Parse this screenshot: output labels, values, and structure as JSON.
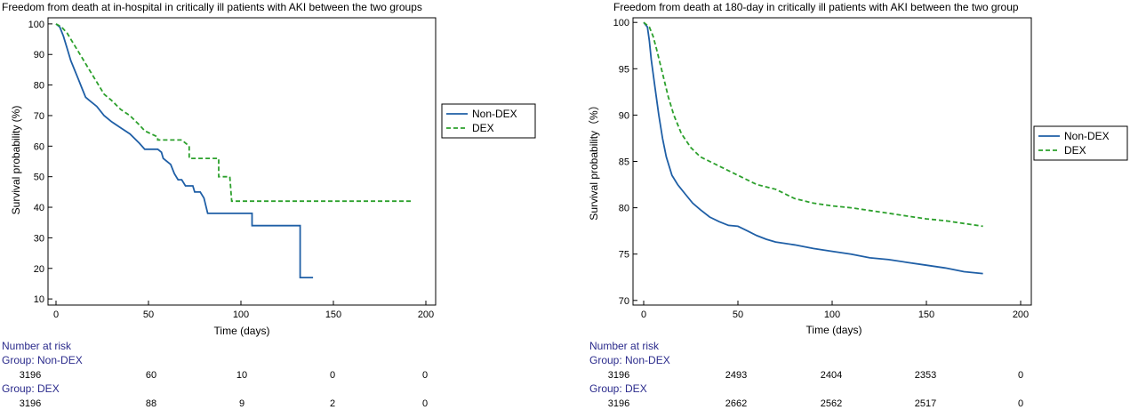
{
  "chart_data": [
    {
      "type": "line",
      "title": "Freedom from death at in-hospital in critically ill patients with AKI between the two groups",
      "xlabel": "Time (days)",
      "ylabel": "Survival probability (%)",
      "xlim": [
        0,
        200
      ],
      "ylim": [
        8,
        102
      ],
      "xticks": [
        0,
        50,
        100,
        150,
        200
      ],
      "yticks": [
        10,
        20,
        30,
        40,
        50,
        60,
        70,
        80,
        90,
        100
      ],
      "grid": false,
      "legend_position": "right",
      "series": [
        {
          "name": "Non-DEX",
          "color": "#1f5fa6",
          "style": "solid",
          "points": [
            [
              0,
              100
            ],
            [
              2,
              99
            ],
            [
              4,
              96
            ],
            [
              6,
              92
            ],
            [
              8,
              88
            ],
            [
              10,
              85
            ],
            [
              12,
              82
            ],
            [
              14,
              79
            ],
            [
              16,
              76
            ],
            [
              18,
              75
            ],
            [
              22,
              73
            ],
            [
              26,
              70
            ],
            [
              30,
              68
            ],
            [
              35,
              66
            ],
            [
              40,
              64
            ],
            [
              45,
              61
            ],
            [
              48,
              59
            ],
            [
              55,
              59
            ],
            [
              57,
              58
            ],
            [
              58,
              56
            ],
            [
              62,
              54
            ],
            [
              64,
              51
            ],
            [
              66,
              49
            ],
            [
              68,
              49
            ],
            [
              70,
              47
            ],
            [
              74,
              47
            ],
            [
              75,
              45
            ],
            [
              78,
              45
            ],
            [
              80,
              43
            ],
            [
              82,
              38
            ],
            [
              106,
              38
            ],
            [
              106,
              34
            ],
            [
              132,
              34
            ],
            [
              132,
              17
            ],
            [
              139,
              17
            ]
          ]
        },
        {
          "name": "DEX",
          "color": "#2ca02c",
          "style": "dashed",
          "points": [
            [
              0,
              100
            ],
            [
              3,
              99
            ],
            [
              6,
              97
            ],
            [
              9,
              94
            ],
            [
              12,
              91
            ],
            [
              15,
              88
            ],
            [
              18,
              85
            ],
            [
              22,
              81
            ],
            [
              26,
              77
            ],
            [
              30,
              75
            ],
            [
              35,
              72
            ],
            [
              40,
              70
            ],
            [
              45,
              67
            ],
            [
              48,
              65
            ],
            [
              55,
              63
            ],
            [
              55,
              62
            ],
            [
              68,
              62
            ],
            [
              72,
              60
            ],
            [
              72,
              56
            ],
            [
              88,
              56
            ],
            [
              88,
              50
            ],
            [
              94,
              50
            ],
            [
              95,
              42
            ],
            [
              193,
              42
            ]
          ]
        }
      ],
      "risk_table": {
        "header": "Number at risk",
        "columns": [
          0,
          50,
          100,
          150,
          200
        ],
        "groups": [
          {
            "label": "Group: Non-DEX",
            "values": [
              "3196",
              "60",
              "10",
              "0",
              "0"
            ]
          },
          {
            "label": "Group: DEX",
            "values": [
              "3196",
              "88",
              "9",
              "2",
              "0"
            ]
          }
        ]
      }
    },
    {
      "type": "line",
      "title": "Freedom from death at 180-day in critically ill patients with AKI between the two group",
      "xlabel": "Time (days)",
      "ylabel": "Survival probability（%）",
      "xlim": [
        0,
        200
      ],
      "ylim": [
        69.5,
        100.5
      ],
      "xticks": [
        0,
        50,
        100,
        150,
        200
      ],
      "yticks": [
        70,
        75,
        80,
        85,
        90,
        95,
        100
      ],
      "grid": false,
      "legend_position": "right",
      "series": [
        {
          "name": "Non-DEX",
          "color": "#1f5fa6",
          "style": "solid",
          "points": [
            [
              0,
              100
            ],
            [
              2,
              99.5
            ],
            [
              3,
              98
            ],
            [
              4,
              96
            ],
            [
              6,
              93
            ],
            [
              8,
              90
            ],
            [
              10,
              87.5
            ],
            [
              12,
              85.5
            ],
            [
              15,
              83.5
            ],
            [
              18,
              82.5
            ],
            [
              22,
              81.5
            ],
            [
              26,
              80.5
            ],
            [
              30,
              79.8
            ],
            [
              35,
              79
            ],
            [
              40,
              78.5
            ],
            [
              45,
              78.1
            ],
            [
              50,
              78
            ],
            [
              55,
              77.5
            ],
            [
              60,
              77
            ],
            [
              65,
              76.6
            ],
            [
              70,
              76.3
            ],
            [
              80,
              76
            ],
            [
              90,
              75.6
            ],
            [
              100,
              75.3
            ],
            [
              110,
              75
            ],
            [
              120,
              74.6
            ],
            [
              130,
              74.4
            ],
            [
              140,
              74.1
            ],
            [
              150,
              73.8
            ],
            [
              160,
              73.5
            ],
            [
              170,
              73.1
            ],
            [
              180,
              72.9
            ]
          ]
        },
        {
          "name": "DEX",
          "color": "#2ca02c",
          "style": "dashed",
          "points": [
            [
              0,
              100
            ],
            [
              3,
              99.5
            ],
            [
              5,
              98.5
            ],
            [
              7,
              97
            ],
            [
              10,
              94.5
            ],
            [
              13,
              92
            ],
            [
              16,
              90
            ],
            [
              20,
              88
            ],
            [
              25,
              86.5
            ],
            [
              30,
              85.5
            ],
            [
              35,
              85
            ],
            [
              40,
              84.5
            ],
            [
              45,
              84
            ],
            [
              50,
              83.5
            ],
            [
              55,
              83
            ],
            [
              60,
              82.5
            ],
            [
              70,
              82
            ],
            [
              80,
              81
            ],
            [
              90,
              80.5
            ],
            [
              100,
              80.2
            ],
            [
              110,
              80
            ],
            [
              120,
              79.7
            ],
            [
              130,
              79.4
            ],
            [
              140,
              79.1
            ],
            [
              150,
              78.8
            ],
            [
              160,
              78.6
            ],
            [
              170,
              78.3
            ],
            [
              180,
              78
            ]
          ]
        }
      ],
      "risk_table": {
        "header": "Number at risk",
        "columns": [
          0,
          50,
          100,
          150,
          200
        ],
        "groups": [
          {
            "label": "Group: Non-DEX",
            "values": [
              "3196",
              "2493",
              "2404",
              "2353",
              "0"
            ]
          },
          {
            "label": "Group: DEX",
            "values": [
              "3196",
              "2662",
              "2562",
              "2517",
              "0"
            ]
          }
        ]
      }
    }
  ]
}
